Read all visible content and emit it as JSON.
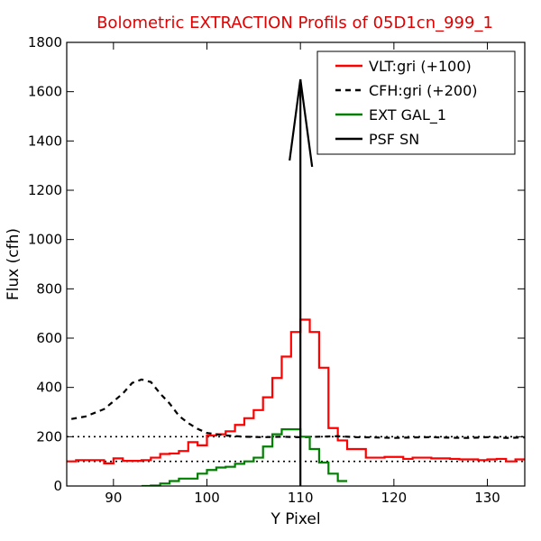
{
  "chart_data": {
    "type": "line",
    "title": "Bolometric EXTRACTION Profils of 05D1cn_999_1",
    "title_color": "#e00000",
    "xlabel": "Y Pixel",
    "ylabel": "Flux (cfh)",
    "xlim": [
      85,
      134
    ],
    "ylim": [
      0,
      1800
    ],
    "xticks": [
      90,
      100,
      110,
      120,
      130
    ],
    "yticks": [
      0,
      200,
      400,
      600,
      800,
      1000,
      1200,
      1400,
      1600,
      1800
    ],
    "grid": false,
    "legend_position": "top-right",
    "series": [
      {
        "name": "VLT:gri (+100)",
        "style": "steps",
        "color": "#ff0000",
        "x": [
          85,
          86,
          87,
          88,
          89,
          90,
          91,
          92,
          93,
          94,
          95,
          96,
          97,
          98,
          99,
          100,
          101,
          102,
          103,
          104,
          105,
          106,
          107,
          108,
          109,
          110,
          111,
          112,
          113,
          114,
          115,
          116,
          117,
          118,
          119,
          120,
          121,
          122,
          123,
          124,
          125,
          126,
          127,
          128,
          129,
          130,
          131,
          132,
          133
        ],
        "y": [
          100,
          105,
          105,
          105,
          92,
          112,
          102,
          102,
          105,
          115,
          130,
          132,
          142,
          178,
          165,
          205,
          210,
          222,
          248,
          275,
          308,
          360,
          438,
          525,
          625,
          675,
          625,
          480,
          235,
          185,
          150,
          150,
          115,
          115,
          118,
          118,
          110,
          115,
          115,
          112,
          112,
          110,
          108,
          108,
          105,
          108,
          110,
          100,
          108
        ]
      },
      {
        "name": "CFH:gri (+200)",
        "style": "dashed",
        "color": "#000000",
        "x": [
          85.5,
          87,
          89,
          91,
          92,
          93,
          94,
          95,
          96,
          97,
          98,
          99,
          100,
          102,
          104,
          106,
          108,
          110,
          112,
          114,
          116,
          118,
          120,
          122,
          124,
          126,
          128,
          130,
          132,
          134
        ],
        "y": [
          272,
          282,
          312,
          375,
          418,
          432,
          422,
          375,
          335,
          285,
          255,
          232,
          215,
          205,
          200,
          198,
          200,
          198,
          200,
          202,
          198,
          197,
          195,
          197,
          198,
          196,
          195,
          198,
          195,
          197
        ]
      },
      {
        "name": "EXT GAL_1",
        "style": "steps",
        "color": "#008000",
        "x": [
          93,
          94,
          95,
          96,
          97,
          98,
          99,
          100,
          101,
          102,
          103,
          104,
          105,
          106,
          107,
          108,
          109,
          110,
          111,
          112,
          113,
          114
        ],
        "y": [
          0,
          2,
          10,
          20,
          30,
          30,
          50,
          65,
          75,
          78,
          90,
          100,
          115,
          160,
          210,
          230,
          230,
          200,
          150,
          95,
          50,
          20
        ]
      },
      {
        "name": "PSF SN",
        "style": "arrow",
        "color": "#000000",
        "x": [
          110,
          110
        ],
        "y": [
          0,
          1650
        ]
      }
    ],
    "reference_lines": [
      {
        "y": 200,
        "style": "dotted",
        "color": "#000000"
      },
      {
        "y": 100,
        "style": "dotted",
        "color": "#000000"
      }
    ]
  }
}
